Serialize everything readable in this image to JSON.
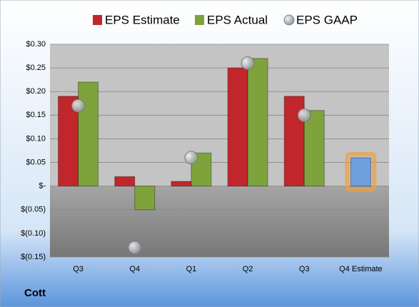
{
  "chart_data": {
    "type": "bar",
    "company": "Cott",
    "categories": [
      "Q3",
      "Q4",
      "Q1",
      "Q2",
      "Q3",
      "Q4 Estimate"
    ],
    "series": [
      {
        "name": "EPS Estimate",
        "color": "#c0262b",
        "values": [
          0.19,
          0.02,
          0.01,
          0.25,
          0.19,
          0.06
        ]
      },
      {
        "name": "EPS Actual",
        "color": "#7ea33c",
        "values": [
          0.22,
          -0.05,
          0.07,
          0.27,
          0.16,
          null
        ]
      },
      {
        "name": "EPS GAAP",
        "color": "#b8bcc4",
        "type": "scatter",
        "values": [
          0.17,
          -0.13,
          0.06,
          0.26,
          0.15,
          null
        ]
      }
    ],
    "highlight": {
      "index": 5,
      "color": "#6fa0dc",
      "glow": "#f0a040"
    },
    "ylim": [
      -0.15,
      0.3
    ],
    "yticks": [
      {
        "value": -0.15,
        "label": "$(0.15)"
      },
      {
        "value": -0.1,
        "label": "$(0.10)"
      },
      {
        "value": -0.05,
        "label": "$(0.05)"
      },
      {
        "value": 0,
        "label": "$-"
      },
      {
        "value": 0.05,
        "label": "$0.05"
      },
      {
        "value": 0.1,
        "label": "$0.10"
      },
      {
        "value": 0.15,
        "label": "$0.15"
      },
      {
        "value": 0.2,
        "label": "$0.20"
      },
      {
        "value": 0.25,
        "label": "$0.25"
      },
      {
        "value": 0.3,
        "label": "$0.30"
      }
    ],
    "grid": true
  }
}
